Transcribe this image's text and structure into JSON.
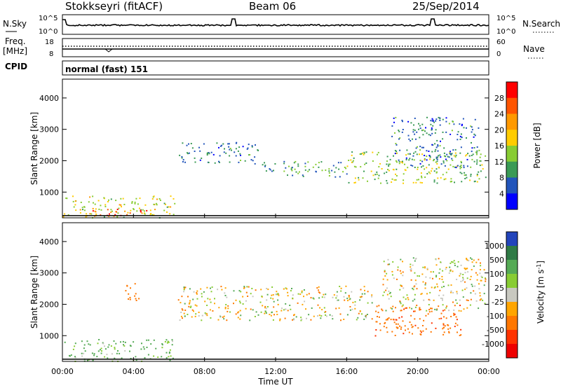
{
  "header": {
    "station": "Stokkseyri (fitACF)",
    "beam": "Beam 06",
    "date": "25/Sep/2014"
  },
  "aux_panels": {
    "nsky": {
      "label": "N.Sky",
      "left_ticks": [
        "10^5",
        "10^0"
      ],
      "right_ticks": [
        "10^5",
        "10^0"
      ],
      "right_label": "N.Search"
    },
    "freq": {
      "label_line1": "Freq.",
      "label_line2": "[MHz]",
      "left_ticks": [
        "18",
        "8"
      ],
      "right_ticks": [
        "60",
        "0"
      ],
      "right_label": "Nave"
    },
    "cpid": {
      "label": "CPID",
      "value": "normal (fast) 151"
    }
  },
  "colorbars": {
    "power": {
      "label": "Power [dB]",
      "ticks": [
        "28",
        "24",
        "20",
        "16",
        "12",
        "8",
        "4"
      ],
      "colors": [
        "#ff0000",
        "#ff5500",
        "#ff9900",
        "#ffcc00",
        "#88cc33",
        "#3a9a55",
        "#2255bb",
        "#0000ff"
      ]
    },
    "velocity": {
      "label": "Velocity [m s",
      "label_sup": "-1",
      "label_end": "]",
      "ticks": [
        "1000",
        "500",
        "100",
        "25",
        "-25",
        "-100",
        "-500",
        "-1000"
      ],
      "colors": [
        "#2244bb",
        "#2f7a45",
        "#55aa55",
        "#88cc33",
        "#c8c8c0",
        "#ffa500",
        "#ff7700",
        "#ff3300",
        "#ee0000"
      ]
    }
  },
  "range_axis": {
    "label": "Slant Range [km]",
    "ticks": [
      "4000",
      "3000",
      "2000",
      "1000"
    ]
  },
  "time_axis": {
    "label": "Time UT",
    "ticks": [
      "00:00",
      "04:00",
      "08:00",
      "12:00",
      "16:00",
      "20:00",
      "00:00"
    ]
  },
  "chart_data": {
    "type": "heatmap",
    "x_unit": "hours UT",
    "xlim": [
      0,
      24
    ],
    "y_unit": "km",
    "ylim": [
      180,
      4600
    ],
    "power_regions": [
      {
        "t0": 0.0,
        "t1": 6.3,
        "r0": 200,
        "r1": 900,
        "mean_db": 16
      },
      {
        "t0": 1.5,
        "t1": 5.0,
        "r0": 250,
        "r1": 500,
        "mean_db": 26
      },
      {
        "t0": 6.5,
        "t1": 11.0,
        "r0": 1900,
        "r1": 2600,
        "mean_db": 8
      },
      {
        "t0": 11.0,
        "t1": 16.0,
        "r0": 1500,
        "r1": 2000,
        "mean_db": 10
      },
      {
        "t0": 16.0,
        "t1": 23.8,
        "r0": 1300,
        "r1": 2300,
        "mean_db": 14
      },
      {
        "t0": 18.5,
        "t1": 23.5,
        "r0": 1800,
        "r1": 3400,
        "mean_db": 8
      }
    ],
    "velocity_regions": [
      {
        "t0": 0.0,
        "t1": 6.3,
        "r0": 200,
        "r1": 900,
        "mean_mps": 150
      },
      {
        "t0": 3.5,
        "t1": 4.3,
        "r0": 2000,
        "r1": 2700,
        "mean_mps": -300
      },
      {
        "t0": 6.5,
        "t1": 17.5,
        "r0": 1500,
        "r1": 2600,
        "mean_mps": 0
      },
      {
        "t0": 17.5,
        "t1": 22.5,
        "r0": 1000,
        "r1": 2000,
        "mean_mps": -400
      },
      {
        "t0": 18.0,
        "t1": 23.8,
        "r0": 1800,
        "r1": 3500,
        "mean_mps": 0
      }
    ]
  }
}
